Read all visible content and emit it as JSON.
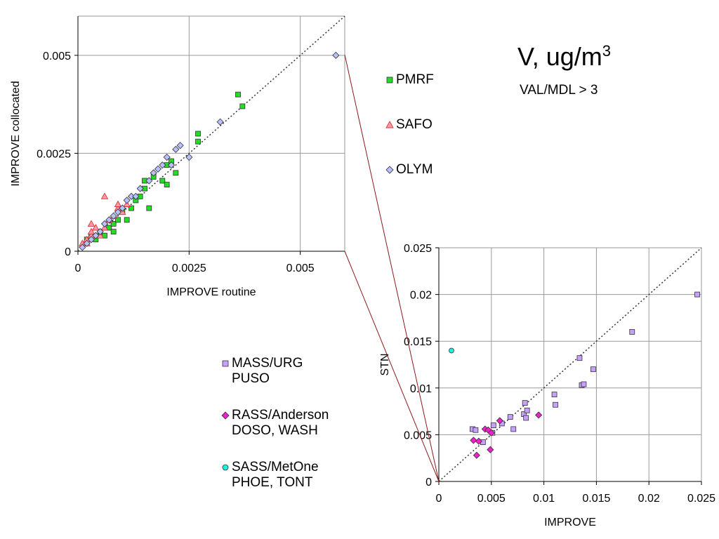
{
  "title": {
    "main": "V, ug/m",
    "sup": "3",
    "subtitle": "VAL/MDL > 3"
  },
  "colors": {
    "PMRF": "#22dd22",
    "SAFO": "#ff99aa",
    "OLYM": "#b8c0ff",
    "MASS_URG": "#c8a0ff",
    "RASS_Anderson": "#ee22cc",
    "SASS_MetOne": "#22eedd",
    "grid": "#9a9a9a",
    "zoom_line": "#8b1a1a"
  },
  "legend_top": [
    {
      "key": "PMRF",
      "label": "PMRF",
      "marker": "square"
    },
    {
      "key": "SAFO",
      "label": "SAFO",
      "marker": "triangle"
    },
    {
      "key": "OLYM",
      "label": "OLYM",
      "marker": "diamond"
    }
  ],
  "legend_bottom": [
    {
      "key": "MASS_URG",
      "lines": [
        "MASS/URG",
        "PUSO"
      ],
      "marker": "square"
    },
    {
      "key": "RASS_Anderson",
      "lines": [
        "RASS/Anderson",
        "DOSO, WASH"
      ],
      "marker": "diamond"
    },
    {
      "key": "SASS_MetOne",
      "lines": [
        "SASS/MetOne",
        "PHOE, TONT"
      ],
      "marker": "circle"
    }
  ],
  "chart_data": [
    {
      "type": "scatter",
      "xlabel": "IMPROVE routine",
      "ylabel": "IMPROVE collocated",
      "xlim": [
        0,
        0.006
      ],
      "ylim": [
        0,
        0.006
      ],
      "xticks": [
        {
          "v": 0,
          "t": "0"
        },
        {
          "v": 0.0025,
          "t": "0.0025"
        },
        {
          "v": 0.005,
          "t": "0.005"
        }
      ],
      "yticks": [
        {
          "v": 0,
          "t": "0"
        },
        {
          "v": 0.0025,
          "t": "0.0025"
        },
        {
          "v": 0.005,
          "t": "0.005"
        }
      ],
      "grid": true,
      "one_to_one_line": true,
      "series": [
        {
          "name": "PMRF",
          "marker": "square",
          "points": [
            [
              0.0002,
              0.0003
            ],
            [
              0.0003,
              0.0004
            ],
            [
              0.0004,
              0.0003
            ],
            [
              0.0005,
              0.0005
            ],
            [
              0.0006,
              0.0004
            ],
            [
              0.0007,
              0.0006
            ],
            [
              0.0008,
              0.0005
            ],
            [
              0.0008,
              0.0007
            ],
            [
              0.0009,
              0.0008
            ],
            [
              0.001,
              0.001
            ],
            [
              0.0011,
              0.0008
            ],
            [
              0.0012,
              0.0011
            ],
            [
              0.0013,
              0.0013
            ],
            [
              0.0014,
              0.0014
            ],
            [
              0.0015,
              0.0016
            ],
            [
              0.0015,
              0.0018
            ],
            [
              0.0016,
              0.0011
            ],
            [
              0.0017,
              0.0019
            ],
            [
              0.0019,
              0.0018
            ],
            [
              0.002,
              0.0017
            ],
            [
              0.002,
              0.0022
            ],
            [
              0.0021,
              0.0023
            ],
            [
              0.0022,
              0.002
            ],
            [
              0.0027,
              0.0028
            ],
            [
              0.0027,
              0.003
            ],
            [
              0.0036,
              0.004
            ],
            [
              0.0037,
              0.0037
            ]
          ]
        },
        {
          "name": "SAFO",
          "marker": "triangle",
          "points": [
            [
              0.0001,
              0.0002
            ],
            [
              0.0002,
              0.0002
            ],
            [
              0.0002,
              0.0003
            ],
            [
              0.0003,
              0.0004
            ],
            [
              0.0003,
              0.0005
            ],
            [
              0.0003,
              0.0007
            ],
            [
              0.0004,
              0.0006
            ],
            [
              0.0005,
              0.0004
            ],
            [
              0.0006,
              0.0006
            ],
            [
              0.0006,
              0.0014
            ],
            [
              0.0007,
              0.0008
            ],
            [
              0.0008,
              0.0009
            ],
            [
              0.0009,
              0.0011
            ],
            [
              0.0009,
              0.0012
            ],
            [
              0.001,
              0.001
            ],
            [
              0.0011,
              0.0012
            ]
          ]
        },
        {
          "name": "OLYM",
          "marker": "diamond",
          "points": [
            [
              0.0001,
              0.0001
            ],
            [
              0.0002,
              0.0002
            ],
            [
              0.0003,
              0.0003
            ],
            [
              0.0004,
              0.0004
            ],
            [
              0.0005,
              0.0005
            ],
            [
              0.0006,
              0.0007
            ],
            [
              0.0007,
              0.0008
            ],
            [
              0.0008,
              0.0009
            ],
            [
              0.0009,
              0.001
            ],
            [
              0.001,
              0.0011
            ],
            [
              0.0011,
              0.0013
            ],
            [
              0.0012,
              0.0014
            ],
            [
              0.0013,
              0.0014
            ],
            [
              0.0014,
              0.0016
            ],
            [
              0.0016,
              0.0018
            ],
            [
              0.0017,
              0.002
            ],
            [
              0.0018,
              0.0021
            ],
            [
              0.0019,
              0.0022
            ],
            [
              0.002,
              0.0024
            ],
            [
              0.0021,
              0.0022
            ],
            [
              0.0022,
              0.0026
            ],
            [
              0.0023,
              0.0027
            ],
            [
              0.0025,
              0.0024
            ],
            [
              0.0032,
              0.0033
            ],
            [
              0.0058,
              0.005
            ]
          ]
        }
      ]
    },
    {
      "type": "scatter",
      "xlabel": "IMPROVE",
      "ylabel": "STN",
      "xlim": [
        0,
        0.025
      ],
      "ylim": [
        0,
        0.025
      ],
      "xticks": [
        {
          "v": 0,
          "t": "0"
        },
        {
          "v": 0.005,
          "t": "0.005"
        },
        {
          "v": 0.01,
          "t": "0.01"
        },
        {
          "v": 0.015,
          "t": "0.015"
        },
        {
          "v": 0.02,
          "t": "0.02"
        },
        {
          "v": 0.025,
          "t": "0.025"
        }
      ],
      "yticks": [
        {
          "v": 0,
          "t": "0"
        },
        {
          "v": 0.005,
          "t": "0.005"
        },
        {
          "v": 0.01,
          "t": "0.01"
        },
        {
          "v": 0.015,
          "t": "0.015"
        },
        {
          "v": 0.02,
          "t": "0.02"
        },
        {
          "v": 0.025,
          "t": "0.025"
        }
      ],
      "grid": true,
      "one_to_one_line": true,
      "series": [
        {
          "name": "MASS/URG",
          "marker": "square",
          "points": [
            [
              0.0032,
              0.0056
            ],
            [
              0.0035,
              0.0055
            ],
            [
              0.0042,
              0.0042
            ],
            [
              0.0051,
              0.0052
            ],
            [
              0.0052,
              0.006
            ],
            [
              0.006,
              0.0062
            ],
            [
              0.0068,
              0.0069
            ],
            [
              0.0071,
              0.0056
            ],
            [
              0.0081,
              0.0072
            ],
            [
              0.0082,
              0.0084
            ],
            [
              0.0083,
              0.0068
            ],
            [
              0.0084,
              0.0076
            ],
            [
              0.011,
              0.0093
            ],
            [
              0.0111,
              0.0082
            ],
            [
              0.0134,
              0.0132
            ],
            [
              0.0136,
              0.0103
            ],
            [
              0.0138,
              0.0104
            ],
            [
              0.0147,
              0.012
            ],
            [
              0.0184,
              0.016
            ],
            [
              0.0246,
              0.02
            ]
          ]
        },
        {
          "name": "RASS/Anderson",
          "marker": "diamond",
          "points": [
            [
              0.0033,
              0.0044
            ],
            [
              0.0036,
              0.0028
            ],
            [
              0.0038,
              0.0043
            ],
            [
              0.0044,
              0.0056
            ],
            [
              0.0047,
              0.0055
            ],
            [
              0.0049,
              0.0034
            ],
            [
              0.005,
              0.0052
            ],
            [
              0.0058,
              0.0065
            ],
            [
              0.0095,
              0.0071
            ]
          ]
        },
        {
          "name": "SASS/MetOne",
          "marker": "circle",
          "points": [
            [
              0.0012,
              0.014
            ]
          ]
        }
      ]
    }
  ]
}
